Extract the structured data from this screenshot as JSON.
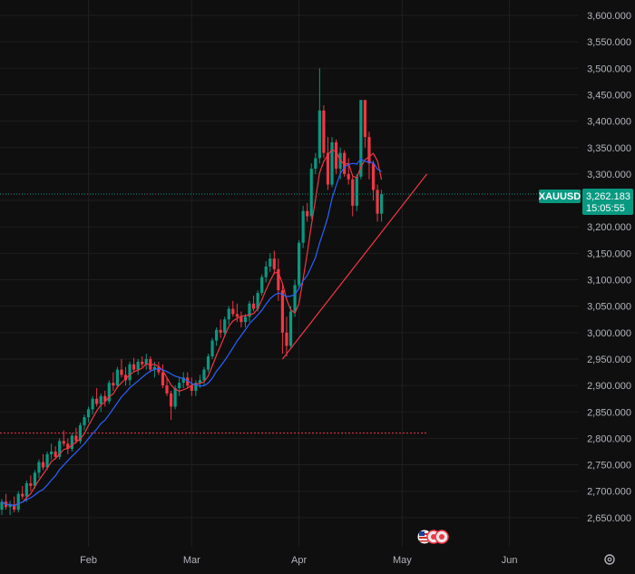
{
  "chart_data": {
    "type": "candlestick",
    "symbol": "XAUUSD",
    "last_price_label": "3,262.183",
    "countdown": "15:05:55",
    "y_range": [
      2620,
      3620
    ],
    "y_ticks": [
      "3,600.000",
      "3,550.000",
      "3,500.000",
      "3,450.000",
      "3,400.000",
      "3,350.000",
      "3,300.000",
      "3,250.000",
      "3,200.000",
      "3,150.000",
      "3,100.000",
      "3,050.000",
      "3,000.000",
      "2,950.000",
      "2,900.000",
      "2,850.000",
      "2,800.000",
      "2,750.000",
      "2,700.000",
      "2,650.000"
    ],
    "x_labels": [
      {
        "label": "Feb",
        "index": 21
      },
      {
        "label": "Mar",
        "index": 46
      },
      {
        "label": "Apr",
        "index": 72
      },
      {
        "label": "May",
        "index": 97
      },
      {
        "label": "Jun",
        "index": 123
      }
    ],
    "candles": [
      [
        2665,
        2685,
        2655,
        2680
      ],
      [
        2680,
        2695,
        2665,
        2670
      ],
      [
        2670,
        2682,
        2655,
        2675
      ],
      [
        2675,
        2690,
        2660,
        2665
      ],
      [
        2665,
        2700,
        2660,
        2695
      ],
      [
        2695,
        2710,
        2685,
        2690
      ],
      [
        2690,
        2720,
        2680,
        2715
      ],
      [
        2715,
        2730,
        2700,
        2710
      ],
      [
        2710,
        2740,
        2705,
        2735
      ],
      [
        2735,
        2760,
        2725,
        2755
      ],
      [
        2755,
        2770,
        2740,
        2745
      ],
      [
        2745,
        2775,
        2740,
        2770
      ],
      [
        2770,
        2790,
        2760,
        2775
      ],
      [
        2775,
        2785,
        2760,
        2765
      ],
      [
        2765,
        2800,
        2760,
        2795
      ],
      [
        2795,
        2815,
        2785,
        2790
      ],
      [
        2790,
        2800,
        2770,
        2780
      ],
      [
        2780,
        2810,
        2775,
        2805
      ],
      [
        2805,
        2820,
        2790,
        2795
      ],
      [
        2795,
        2830,
        2790,
        2825
      ],
      [
        2825,
        2845,
        2815,
        2840
      ],
      [
        2840,
        2860,
        2830,
        2855
      ],
      [
        2855,
        2880,
        2845,
        2875
      ],
      [
        2875,
        2895,
        2860,
        2865
      ],
      [
        2865,
        2885,
        2850,
        2880
      ],
      [
        2880,
        2890,
        2860,
        2870
      ],
      [
        2870,
        2910,
        2865,
        2905
      ],
      [
        2905,
        2925,
        2890,
        2900
      ],
      [
        2900,
        2935,
        2895,
        2930
      ],
      [
        2930,
        2950,
        2915,
        2920
      ],
      [
        2920,
        2935,
        2900,
        2910
      ],
      [
        2910,
        2945,
        2900,
        2940
      ],
      [
        2940,
        2952,
        2925,
        2930
      ],
      [
        2930,
        2950,
        2920,
        2945
      ],
      [
        2945,
        2955,
        2935,
        2940
      ],
      [
        2940,
        2960,
        2930,
        2950
      ],
      [
        2950,
        2955,
        2925,
        2930
      ],
      [
        2930,
        2945,
        2915,
        2935
      ],
      [
        2935,
        2945,
        2920,
        2925
      ],
      [
        2925,
        2940,
        2895,
        2900
      ],
      [
        2900,
        2915,
        2880,
        2885
      ],
      [
        2885,
        2890,
        2835,
        2860
      ],
      [
        2860,
        2900,
        2855,
        2895
      ],
      [
        2895,
        2915,
        2880,
        2905
      ],
      [
        2905,
        2925,
        2895,
        2915
      ],
      [
        2915,
        2925,
        2895,
        2900
      ],
      [
        2900,
        2915,
        2880,
        2890
      ],
      [
        2890,
        2910,
        2880,
        2905
      ],
      [
        2905,
        2920,
        2895,
        2910
      ],
      [
        2910,
        2935,
        2900,
        2930
      ],
      [
        2930,
        2960,
        2925,
        2955
      ],
      [
        2955,
        2990,
        2950,
        2985
      ],
      [
        2985,
        3010,
        2975,
        3005
      ],
      [
        3005,
        3025,
        2990,
        3000
      ],
      [
        3000,
        3030,
        2995,
        3025
      ],
      [
        3025,
        3050,
        3015,
        3045
      ],
      [
        3045,
        3060,
        3030,
        3035
      ],
      [
        3035,
        3055,
        3020,
        3030
      ],
      [
        3030,
        3040,
        3010,
        3020
      ],
      [
        3020,
        3035,
        3010,
        3030
      ],
      [
        3030,
        3060,
        3020,
        3055
      ],
      [
        3055,
        3070,
        3040,
        3045
      ],
      [
        3045,
        3080,
        3040,
        3075
      ],
      [
        3075,
        3110,
        3070,
        3105
      ],
      [
        3105,
        3135,
        3095,
        3125
      ],
      [
        3125,
        3150,
        3115,
        3140
      ],
      [
        3140,
        3155,
        3110,
        3120
      ],
      [
        3120,
        3140,
        3060,
        3080
      ],
      [
        3080,
        3090,
        2960,
        3000
      ],
      [
        3000,
        3030,
        2955,
        2975
      ],
      [
        2975,
        3050,
        2970,
        3040
      ],
      [
        3040,
        3100,
        3030,
        3090
      ],
      [
        3090,
        3175,
        3085,
        3170
      ],
      [
        3170,
        3240,
        3160,
        3230
      ],
      [
        3230,
        3245,
        3210,
        3220
      ],
      [
        3220,
        3320,
        3215,
        3310
      ],
      [
        3310,
        3340,
        3300,
        3330
      ],
      [
        3330,
        3500,
        3320,
        3420
      ],
      [
        3420,
        3430,
        3330,
        3340
      ],
      [
        3340,
        3370,
        3270,
        3280
      ],
      [
        3280,
        3370,
        3275,
        3360
      ],
      [
        3360,
        3365,
        3300,
        3310
      ],
      [
        3310,
        3350,
        3290,
        3340
      ],
      [
        3340,
        3345,
        3295,
        3300
      ],
      [
        3300,
        3330,
        3280,
        3290
      ],
      [
        3290,
        3295,
        3220,
        3240
      ],
      [
        3240,
        3300,
        3230,
        3295
      ],
      [
        3295,
        3440,
        3290,
        3440
      ],
      [
        3440,
        3440,
        3350,
        3370
      ],
      [
        3370,
        3380,
        3290,
        3320
      ],
      [
        3320,
        3325,
        3250,
        3270
      ],
      [
        3270,
        3280,
        3210,
        3225
      ],
      [
        3225,
        3270,
        3210,
        3262
      ]
    ],
    "trendline": {
      "from": [
        68,
        2950
      ],
      "to": [
        103,
        3300
      ],
      "color": "#f23645"
    },
    "price_line": {
      "value": 3262.183,
      "color": "#089981"
    },
    "support_line": {
      "value": 2810,
      "color": "#f23645"
    },
    "colors": {
      "up": "#089981",
      "down": "#f23645",
      "ma_fast": "#f23645",
      "ma_slow": "#2962ff",
      "grid": "#1f1f1f",
      "background": "#0f0f0f"
    },
    "grid": true,
    "moving_averages": [
      {
        "period": 5,
        "color": "#f23645"
      },
      {
        "period": 11,
        "color": "#2962ff"
      }
    ],
    "event_flags": [
      "us-flag-icon",
      "event-icon",
      "event-icon"
    ],
    "settings_icon": "gear-icon"
  }
}
